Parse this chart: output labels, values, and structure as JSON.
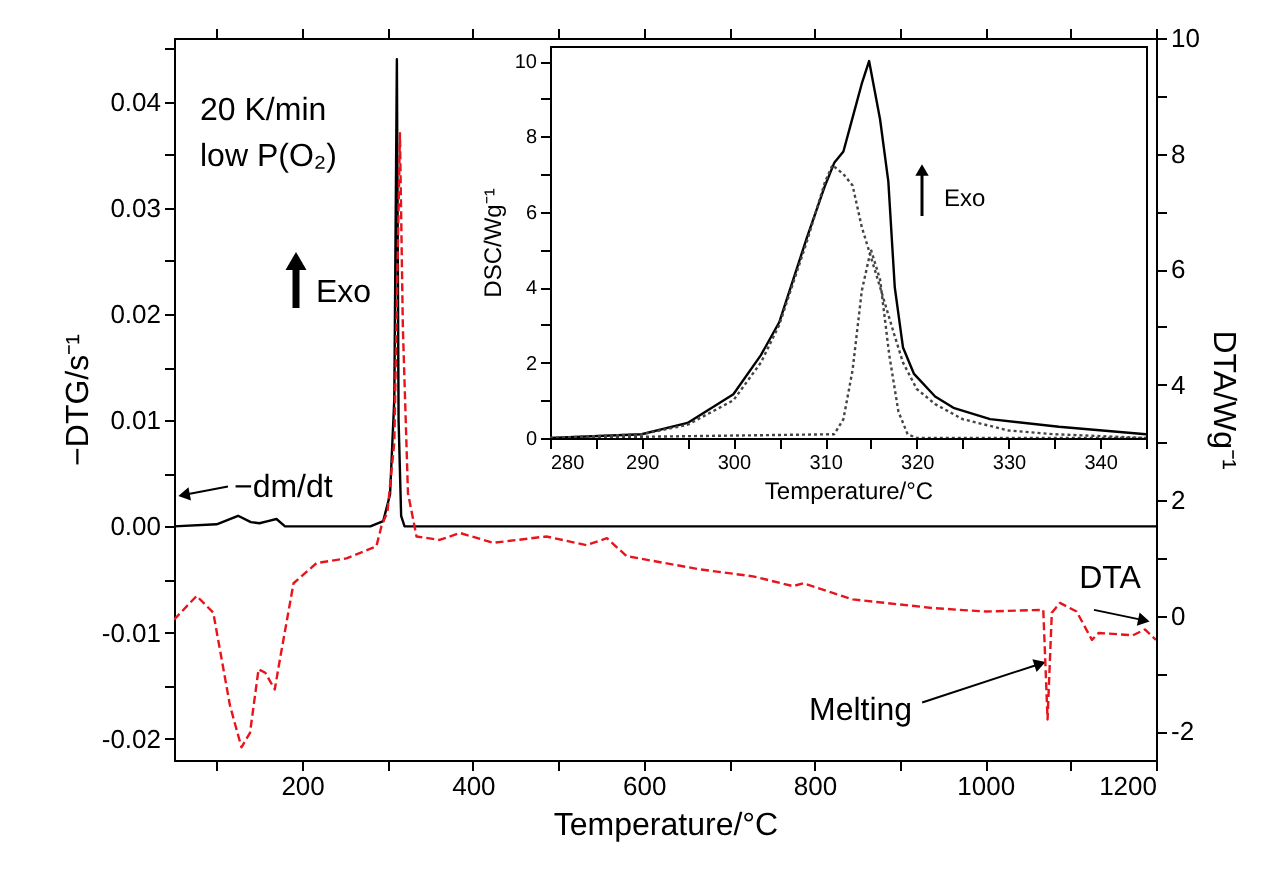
{
  "chart_data": [
    {
      "type": "line",
      "xlabel": "Temperature/°C",
      "ylabel": "−DTG/s⁻¹",
      "y2label": "DTA/Wg⁻¹",
      "xlim": [
        50,
        1200
      ],
      "xticks": [
        {
          "value": 100,
          "label": null
        },
        200,
        {
          "value": 300,
          "label": null
        },
        400,
        {
          "value": 500,
          "label": null
        },
        600,
        {
          "value": 700,
          "label": null
        },
        800,
        {
          "value": 900,
          "label": null
        },
        1000,
        {
          "value": 1100,
          "label": null
        },
        1200
      ],
      "ylim": [
        -0.022,
        0.046
      ],
      "yticks": [
        -0.02,
        {
          "value": -0.015,
          "label": null
        },
        -0.01,
        {
          "value": -0.005,
          "label": null
        },
        {
          "value": 0,
          "label": "0.00"
        },
        {
          "value": 0.005,
          "label": null
        },
        0.01,
        {
          "value": 0.015,
          "label": null
        },
        0.02,
        {
          "value": 0.025,
          "label": null
        },
        0.03,
        {
          "value": 0.035,
          "label": null
        },
        0.04,
        {
          "value": 0.045,
          "label": null
        }
      ],
      "y2lim": [
        -2.5,
        10
      ],
      "y2ticks": [
        -2,
        {
          "value": -1,
          "label": null
        },
        0,
        {
          "value": 1,
          "label": null
        },
        2,
        {
          "value": 3,
          "label": null
        },
        4,
        {
          "value": 5,
          "label": null
        },
        6,
        {
          "value": 7,
          "label": null
        },
        8,
        {
          "value": 9,
          "label": null
        },
        10
      ],
      "grid": false,
      "annotations": [
        "20 K/min",
        "low P(O₂)",
        "Exo",
        {
          "text": "Melting",
          "x": 1062,
          "y": -0.013
        },
        {
          "text": "−dm/dt",
          "x": 64,
          "y": 0.003
        }
      ],
      "series": [
        {
          "color": "#000000",
          "line_style": "solid",
          "x": [
            50,
            100,
            125,
            140,
            150,
            160,
            170,
            180,
            200,
            280,
            295,
            303,
            308,
            311,
            313,
            316,
            320,
            400,
            600,
            800,
            1000,
            1200
          ],
          "values": [
            0,
            0.0002,
            0.001,
            0.0004,
            0.0003,
            0.0005,
            0.0007,
            0,
            0,
            0,
            0.0005,
            0.003,
            0.012,
            0.044,
            0.01,
            0.001,
            0,
            0,
            0,
            0,
            0,
            0
          ]
        },
        {
          "name": "DTA",
          "color": "#e8141c",
          "line_style": "dashed",
          "axis": "y2",
          "x": [
            50,
            76.5,
            96,
            115.6,
            129,
            139,
            149,
            157,
            168,
            174,
            190,
            217,
            252,
            287,
            293,
            300,
            308,
            314.6,
            318,
            324,
            334,
            361,
            385,
            424,
            486,
            533,
            557,
            580,
            666,
            728,
            775,
            787,
            845,
            939,
            1001,
            1068,
            1073,
            1078,
            1087.5,
            1107,
            1125,
            1133,
            1173,
            1187,
            1200
          ],
          "values": [
            -0.07,
            0.34,
            0.05,
            -1.56,
            -2.28,
            -2.03,
            -0.93,
            -0.99,
            -1.28,
            -0.76,
            0.56,
            0.91,
            0.99,
            1.2,
            1.55,
            1.8,
            3.0,
            8.35,
            5.0,
            2.12,
            1.37,
            1.31,
            1.43,
            1.26,
            1.37,
            1.22,
            1.34,
            1.03,
            0.8,
            0.68,
            0.51,
            0.56,
            0.28,
            0.13,
            0.07,
            0.1,
            -1.8,
            0.05,
            0.22,
            0.07,
            -0.42,
            -0.3,
            -0.34,
            -0.24,
            -0.42
          ]
        }
      ]
    },
    {
      "type": "line",
      "xlabel": "Temperature/°C",
      "ylabel": "DSC/Wg⁻¹",
      "xlim": [
        280,
        345
      ],
      "xticks": [
        280,
        {
          "value": 285,
          "label": null
        },
        290,
        {
          "value": 295,
          "label": null
        },
        300,
        {
          "value": 305,
          "label": null
        },
        310,
        {
          "value": 315,
          "label": null
        },
        320,
        {
          "value": 325,
          "label": null
        },
        330,
        {
          "value": 335,
          "label": null
        },
        340,
        {
          "value": 345,
          "label": null
        }
      ],
      "ylim": [
        0,
        10.4
      ],
      "yticks": [
        0,
        {
          "value": 1,
          "label": null
        },
        2,
        {
          "value": 3,
          "label": null
        },
        4,
        {
          "value": 5,
          "label": null
        },
        6,
        {
          "value": 7,
          "label": null
        },
        8,
        {
          "value": 9,
          "label": null
        },
        10
      ],
      "grid": false,
      "annotations": [
        "Exo"
      ],
      "series": [
        {
          "color": "#000000",
          "line_style": "solid",
          "x": [
            280,
            290,
            295,
            300,
            303,
            305,
            308,
            310,
            311,
            312,
            313,
            314,
            314.8,
            316,
            316.9,
            317.6,
            318.5,
            319.7,
            322,
            324,
            328,
            335.5,
            345
          ],
          "values": [
            0,
            0.1,
            0.4,
            1.16,
            2.2,
            3.07,
            5.3,
            6.7,
            7.3,
            7.6,
            8.5,
            9.4,
            10.0,
            8.45,
            6.8,
            4.0,
            2.4,
            1.7,
            1.1,
            0.8,
            0.5,
            0.3,
            0.1
          ]
        },
        {
          "color": "#444444",
          "line_style": "dotted",
          "x": [
            280,
            290,
            295,
            300,
            303,
            305,
            308,
            310,
            310.8,
            312,
            313,
            314,
            316,
            317.6,
            318.5,
            320,
            322,
            325,
            330,
            335,
            345
          ],
          "values": [
            0,
            0.1,
            0.35,
            1.0,
            2.0,
            3.0,
            5.2,
            6.8,
            7.24,
            7.0,
            6.7,
            5.6,
            4.0,
            2.7,
            2.0,
            1.3,
            0.9,
            0.5,
            0.2,
            0.1,
            0
          ]
        },
        {
          "color": "#444444",
          "line_style": "dotted",
          "x": [
            280,
            311,
            312,
            313,
            314,
            315,
            316,
            317,
            318,
            319,
            320,
            345
          ],
          "values": [
            0,
            0.1,
            0.5,
            1.8,
            3.9,
            5.0,
            4.2,
            2.2,
            0.7,
            0.1,
            0,
            0
          ]
        }
      ]
    }
  ]
}
